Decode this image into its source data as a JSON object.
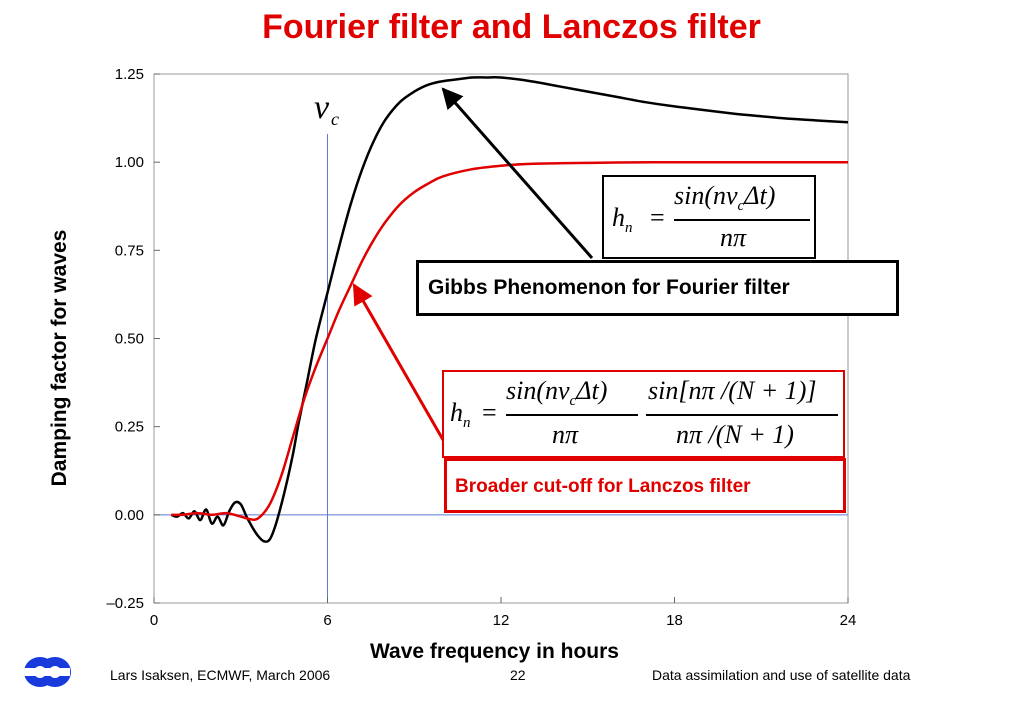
{
  "title": "Fourier filter and Lanczos filter",
  "colors": {
    "title": "#e00000",
    "fourier": "#000000",
    "lanczos": "#e00000",
    "cutoff_line": "#5b7bd5",
    "logo": "#1a3bdc"
  },
  "cutoff_label": {
    "symbol": "ν",
    "subscript": "c"
  },
  "annotations": {
    "gibbs": "Gibbs Phenomenon for Fourier filter",
    "lanczos": "Broader cut-off for Lanczos filter"
  },
  "formulas": {
    "fourier": {
      "lhs": "h",
      "lhs_sub": "n",
      "eq": "=",
      "num": "sin(nν",
      "num_sub": "c",
      "num_end": "Δt)",
      "den": "nπ"
    },
    "lanczos": {
      "lhs": "h",
      "lhs_sub": "n",
      "eq": "=",
      "num1": "sin(nν",
      "num1_sub": "c",
      "num1_end": "Δt)",
      "den1": "nπ",
      "num2": "sin[nπ /(N + 1)]",
      "den2": "nπ /(N + 1)"
    }
  },
  "footer": {
    "left": "Lars Isaksen, ECMWF, March 2006",
    "center": "22",
    "right": "Data assimilation and use of satellite data"
  },
  "chart_data": {
    "type": "line",
    "title": "Fourier filter and Lanczos filter",
    "xlabel": "Wave frequency in hours",
    "ylabel": "Damping factor for waves",
    "xlim": [
      0,
      24
    ],
    "ylim": [
      -0.25,
      1.25
    ],
    "xticks": [
      "0",
      "6",
      "12",
      "18",
      "24"
    ],
    "yticks": [
      "–0.25",
      "0.00",
      "0.25",
      "0.50",
      "0.75",
      "1.00",
      "1.25"
    ],
    "xtick_values": [
      0,
      6,
      12,
      18,
      24
    ],
    "ytick_values": [
      -0.25,
      0,
      0.25,
      0.5,
      0.75,
      1.0,
      1.25
    ],
    "cutoff_x": 6,
    "zero_line": 0,
    "series": [
      {
        "color": "#000000",
        "x": [
          0.6,
          0.8,
          1.0,
          1.2,
          1.4,
          1.6,
          1.8,
          2.0,
          2.2,
          2.4,
          2.6,
          2.8,
          3.0,
          3.2,
          3.4,
          3.6,
          3.8,
          4.0,
          4.2,
          4.5,
          4.8,
          5.0,
          5.3,
          5.6,
          6.0,
          6.4,
          6.8,
          7.2,
          7.6,
          8.0,
          8.5,
          9.0,
          9.5,
          10.0,
          10.5,
          11.0,
          11.5,
          12.0,
          13.0,
          14.0,
          15.0,
          16.0,
          17.0,
          18.0,
          19.0,
          20.0,
          21.0,
          22.0,
          23.0,
          24.0
        ],
        "y": [
          0.0,
          -0.005,
          0.005,
          -0.01,
          0.01,
          -0.015,
          0.015,
          -0.025,
          -0.005,
          -0.03,
          0.01,
          0.035,
          0.03,
          -0.005,
          -0.035,
          -0.06,
          -0.075,
          -0.07,
          -0.03,
          0.06,
          0.17,
          0.26,
          0.38,
          0.5,
          0.63,
          0.76,
          0.88,
          0.98,
          1.06,
          1.12,
          1.17,
          1.2,
          1.22,
          1.23,
          1.235,
          1.24,
          1.24,
          1.24,
          1.23,
          1.215,
          1.2,
          1.185,
          1.17,
          1.158,
          1.148,
          1.138,
          1.13,
          1.123,
          1.118,
          1.113
        ]
      },
      {
        "color": "#e00000",
        "x": [
          0.6,
          1.0,
          1.5,
          2.0,
          2.5,
          3.0,
          3.3,
          3.6,
          4.0,
          4.4,
          4.8,
          5.2,
          5.6,
          6.0,
          6.4,
          6.8,
          7.2,
          7.6,
          8.0,
          8.5,
          9.0,
          9.5,
          10.0,
          11.0,
          12.0,
          13.0,
          14.0,
          15.0,
          16.0,
          18.0,
          20.0,
          22.0,
          24.0
        ],
        "y": [
          0.0,
          0.0,
          0.005,
          0.0,
          0.005,
          -0.005,
          -0.012,
          -0.01,
          0.03,
          0.11,
          0.22,
          0.33,
          0.42,
          0.5,
          0.58,
          0.65,
          0.72,
          0.78,
          0.83,
          0.88,
          0.915,
          0.94,
          0.96,
          0.98,
          0.99,
          0.995,
          0.997,
          0.998,
          0.999,
          1.0,
          1.0,
          1.0,
          1.0
        ]
      }
    ]
  }
}
